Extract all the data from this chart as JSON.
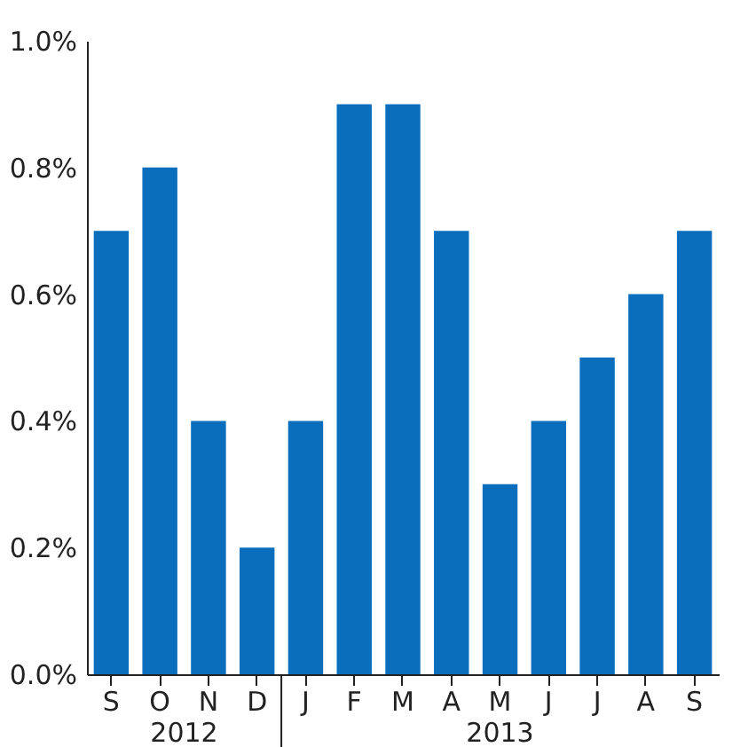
{
  "chart_data": {
    "type": "bar",
    "categories": [
      "S",
      "O",
      "N",
      "D",
      "J",
      "F",
      "M",
      "A",
      "M",
      "J",
      "J",
      "A",
      "S"
    ],
    "values": [
      0.7,
      0.8,
      0.4,
      0.2,
      0.4,
      0.9,
      0.9,
      0.7,
      0.3,
      0.4,
      0.5,
      0.6,
      0.7
    ],
    "color": "#0a6ebd",
    "ylim": [
      0,
      1.0
    ],
    "yticks": [
      {
        "value": 0,
        "label": "0.0%"
      },
      {
        "value": 0.2,
        "label": "0.2%"
      },
      {
        "value": 0.4,
        "label": "0.4%"
      },
      {
        "value": 0.6,
        "label": "0.6%"
      },
      {
        "value": 0.8,
        "label": "0.8%"
      },
      {
        "value": 1.0,
        "label": "1.0%"
      }
    ],
    "annotations": [
      "2012",
      "2013"
    ],
    "grid": false
  }
}
